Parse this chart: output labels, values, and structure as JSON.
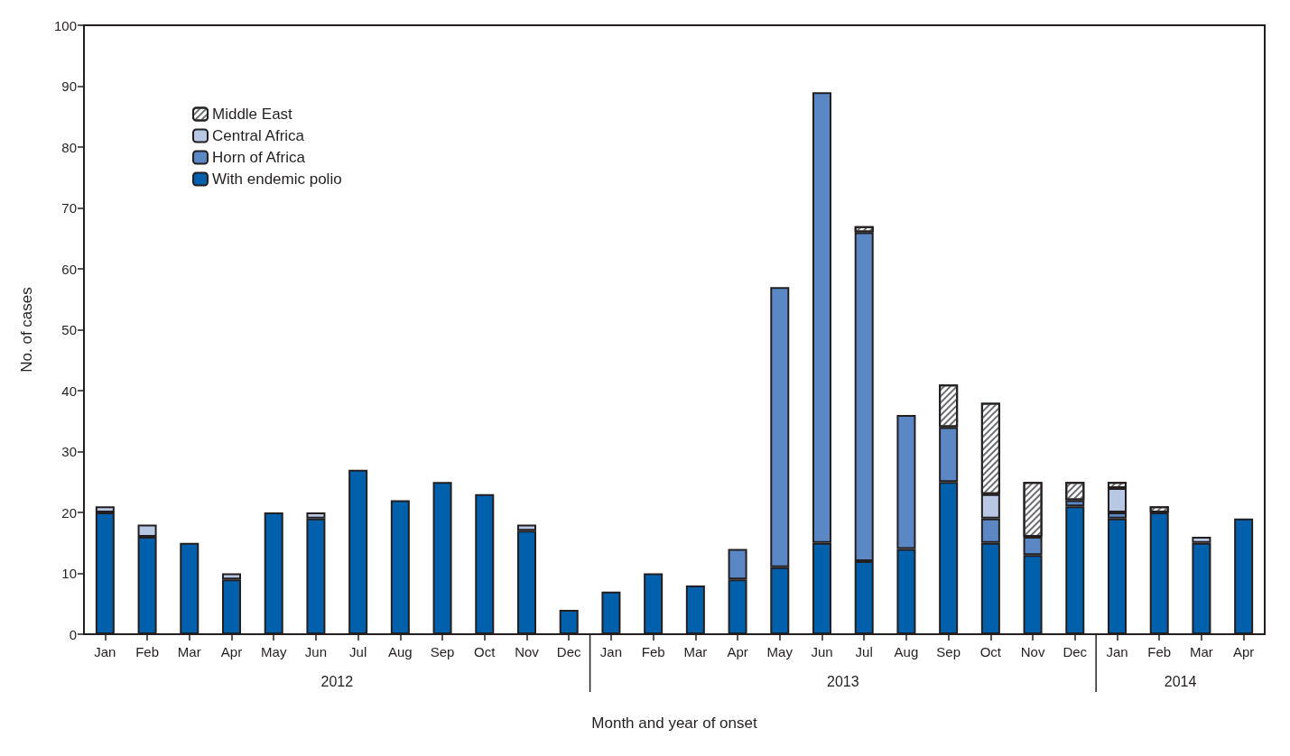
{
  "chart_data": {
    "type": "bar",
    "stacked": true,
    "xlabel": "Month and year of onset",
    "ylabel": "No. of cases",
    "categories": [
      "Jan",
      "Feb",
      "Mar",
      "Apr",
      "May",
      "Jun",
      "Jul",
      "Aug",
      "Sep",
      "Oct",
      "Nov",
      "Dec",
      "Jan",
      "Feb",
      "Mar",
      "Apr",
      "May",
      "Jun",
      "Jul",
      "Aug",
      "Sep",
      "Oct",
      "Nov",
      "Dec",
      "Jan",
      "Feb",
      "Mar",
      "Apr"
    ],
    "series": [
      {
        "name": "With endemic polio",
        "color": "#0060ab",
        "values": [
          20,
          16,
          15,
          9,
          20,
          19,
          27,
          22,
          25,
          23,
          17,
          4,
          7,
          10,
          8,
          9,
          11,
          15,
          12,
          14,
          25,
          15,
          13,
          21,
          19,
          20,
          15,
          19
        ]
      },
      {
        "name": "Horn of Africa",
        "color": "#5b87c5",
        "values": [
          0,
          0,
          0,
          0,
          0,
          0,
          0,
          0,
          0,
          0,
          0,
          0,
          0,
          0,
          0,
          5,
          46,
          74,
          54,
          22,
          9,
          4,
          3,
          1,
          1,
          0,
          0,
          0
        ]
      },
      {
        "name": "Central Africa",
        "color": "#b8c7e4",
        "values": [
          1,
          2,
          0,
          1,
          0,
          1,
          0,
          0,
          0,
          0,
          1,
          0,
          0,
          0,
          0,
          0,
          0,
          0,
          0,
          0,
          0,
          4,
          0,
          0,
          4,
          0,
          1,
          0
        ]
      },
      {
        "name": "Middle East",
        "color": "#ffffff",
        "values": [
          0,
          0,
          0,
          0,
          0,
          0,
          0,
          0,
          0,
          0,
          0,
          0,
          0,
          0,
          0,
          0,
          0,
          0,
          1,
          0,
          7,
          15,
          9,
          3,
          1,
          1,
          0,
          0
        ]
      }
    ],
    "ylim": [
      0,
      100
    ],
    "yticks": [
      0,
      10,
      20,
      30,
      40,
      50,
      60,
      70,
      80,
      90,
      100
    ],
    "grid": false,
    "legend": "top left",
    "annotations": [
      "2012",
      "2013",
      "2014"
    ]
  }
}
